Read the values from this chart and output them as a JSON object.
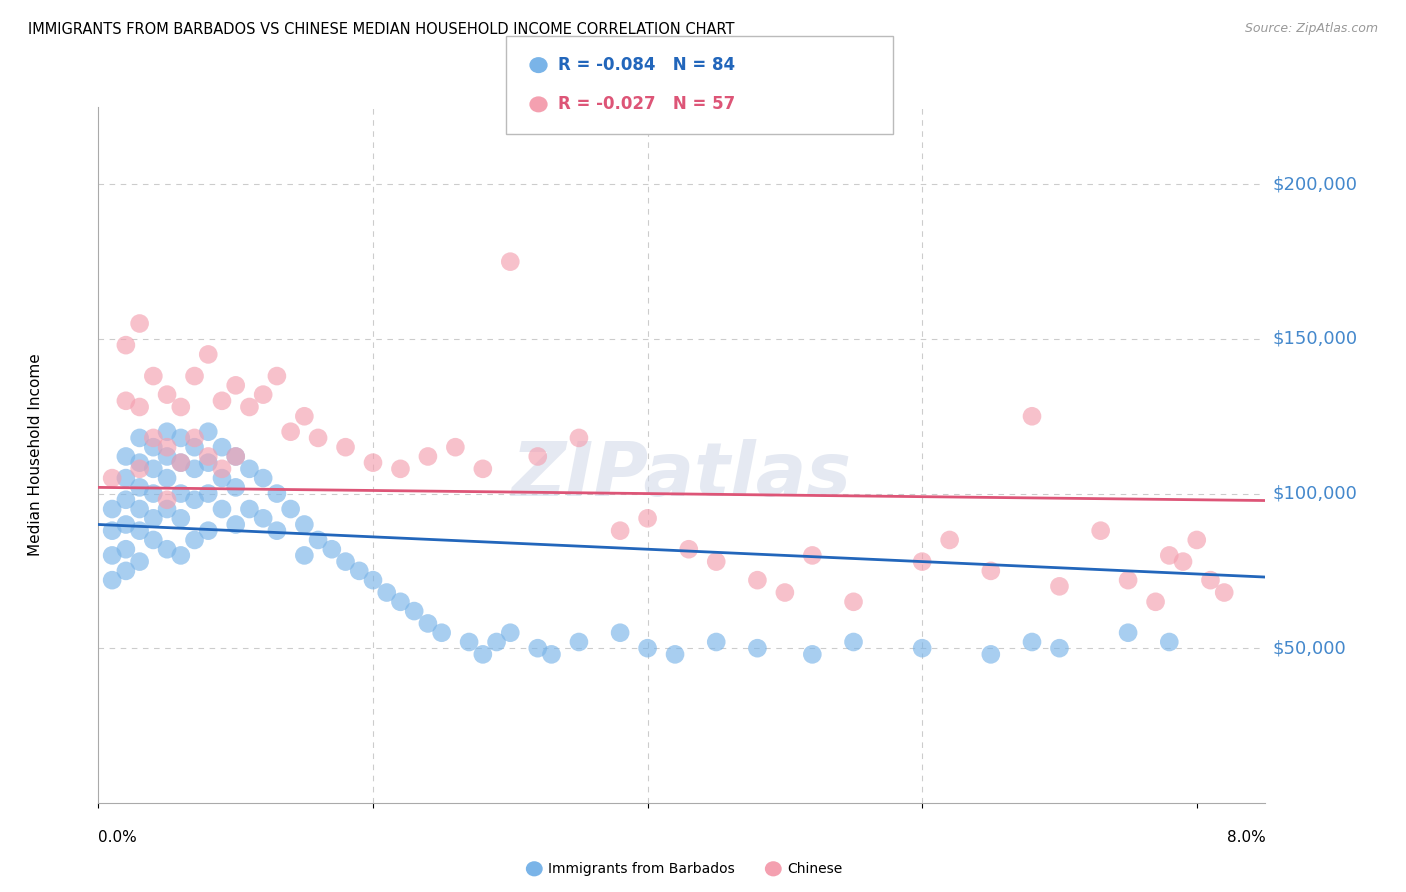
{
  "title": "IMMIGRANTS FROM BARBADOS VS CHINESE MEDIAN HOUSEHOLD INCOME CORRELATION CHART",
  "source": "Source: ZipAtlas.com",
  "ylabel": "Median Household Income",
  "ylim": [
    0,
    225000
  ],
  "xlim": [
    0.0,
    0.085
  ],
  "barbados_color": "#7ab4e8",
  "chinese_color": "#f4a0b0",
  "barbados_line_color": "#2266bb",
  "chinese_line_color": "#dd5577",
  "background_color": "#ffffff",
  "grid_color": "#cccccc",
  "tick_color": "#4488cc",
  "watermark": "ZIPatlas",
  "barbados_R": -0.084,
  "barbados_N": 84,
  "chinese_R": -0.027,
  "chinese_N": 57,
  "barbados_x": [
    0.001,
    0.001,
    0.001,
    0.001,
    0.002,
    0.002,
    0.002,
    0.002,
    0.002,
    0.002,
    0.003,
    0.003,
    0.003,
    0.003,
    0.003,
    0.003,
    0.004,
    0.004,
    0.004,
    0.004,
    0.004,
    0.005,
    0.005,
    0.005,
    0.005,
    0.005,
    0.006,
    0.006,
    0.006,
    0.006,
    0.006,
    0.007,
    0.007,
    0.007,
    0.007,
    0.008,
    0.008,
    0.008,
    0.008,
    0.009,
    0.009,
    0.009,
    0.01,
    0.01,
    0.01,
    0.011,
    0.011,
    0.012,
    0.012,
    0.013,
    0.013,
    0.014,
    0.015,
    0.015,
    0.016,
    0.017,
    0.018,
    0.019,
    0.02,
    0.021,
    0.022,
    0.023,
    0.024,
    0.025,
    0.027,
    0.028,
    0.029,
    0.03,
    0.032,
    0.033,
    0.035,
    0.038,
    0.04,
    0.042,
    0.045,
    0.048,
    0.052,
    0.055,
    0.06,
    0.065,
    0.068,
    0.07,
    0.075,
    0.078
  ],
  "barbados_y": [
    95000,
    88000,
    80000,
    72000,
    112000,
    105000,
    98000,
    90000,
    82000,
    75000,
    118000,
    110000,
    102000,
    95000,
    88000,
    78000,
    115000,
    108000,
    100000,
    92000,
    85000,
    120000,
    112000,
    105000,
    95000,
    82000,
    118000,
    110000,
    100000,
    92000,
    80000,
    115000,
    108000,
    98000,
    85000,
    120000,
    110000,
    100000,
    88000,
    115000,
    105000,
    95000,
    112000,
    102000,
    90000,
    108000,
    95000,
    105000,
    92000,
    100000,
    88000,
    95000,
    90000,
    80000,
    85000,
    82000,
    78000,
    75000,
    72000,
    68000,
    65000,
    62000,
    58000,
    55000,
    52000,
    48000,
    52000,
    55000,
    50000,
    48000,
    52000,
    55000,
    50000,
    48000,
    52000,
    50000,
    48000,
    52000,
    50000,
    48000,
    52000,
    50000,
    55000,
    52000
  ],
  "chinese_x": [
    0.001,
    0.002,
    0.002,
    0.003,
    0.003,
    0.003,
    0.004,
    0.004,
    0.005,
    0.005,
    0.005,
    0.006,
    0.006,
    0.007,
    0.007,
    0.008,
    0.008,
    0.009,
    0.009,
    0.01,
    0.01,
    0.011,
    0.012,
    0.013,
    0.014,
    0.015,
    0.016,
    0.018,
    0.02,
    0.022,
    0.024,
    0.026,
    0.028,
    0.03,
    0.032,
    0.035,
    0.038,
    0.04,
    0.043,
    0.045,
    0.048,
    0.05,
    0.052,
    0.055,
    0.06,
    0.062,
    0.065,
    0.068,
    0.07,
    0.073,
    0.075,
    0.077,
    0.078,
    0.079,
    0.08,
    0.081,
    0.082
  ],
  "chinese_y": [
    105000,
    148000,
    130000,
    155000,
    128000,
    108000,
    138000,
    118000,
    132000,
    115000,
    98000,
    128000,
    110000,
    138000,
    118000,
    145000,
    112000,
    130000,
    108000,
    135000,
    112000,
    128000,
    132000,
    138000,
    120000,
    125000,
    118000,
    115000,
    110000,
    108000,
    112000,
    115000,
    108000,
    175000,
    112000,
    118000,
    88000,
    92000,
    82000,
    78000,
    72000,
    68000,
    80000,
    65000,
    78000,
    85000,
    75000,
    125000,
    70000,
    88000,
    72000,
    65000,
    80000,
    78000,
    85000,
    72000,
    68000
  ]
}
